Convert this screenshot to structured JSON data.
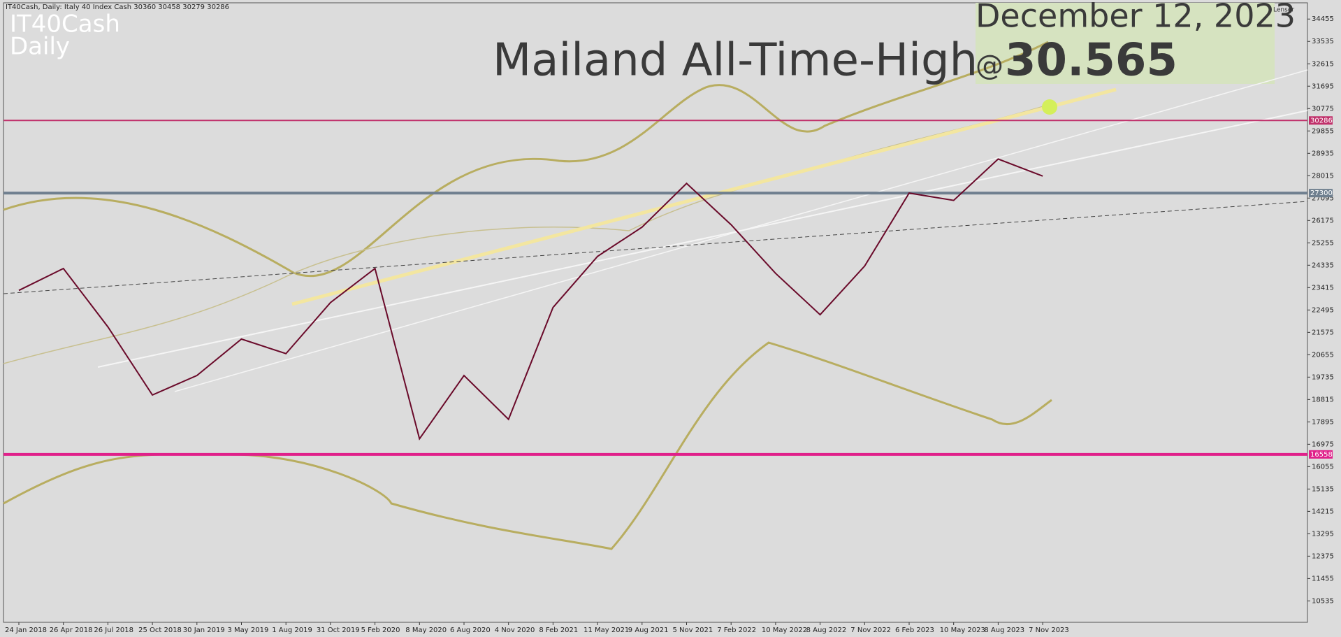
{
  "chart_data": {
    "type": "line",
    "header": "IT40Cash, Daily:  Italy 40 Index Cash  30360 30458 30279 30286",
    "symbol": "IT40Cash",
    "timeframe": "Daily",
    "date": "December 12, 2023",
    "title": "Mailand All-Time-High",
    "at": "@",
    "price_label": "30.565",
    "brand": "Lenser",
    "categories": [
      "24 Jan 2018",
      "26 Apr 2018",
      "26 Jul 2018",
      "25 Oct 2018",
      "30 Jan 2019",
      "3 May 2019",
      "1 Aug 2019",
      "31 Oct 2019",
      "5 Feb 2020",
      "8 May 2020",
      "6 Aug 2020",
      "4 Nov 2020",
      "8 Feb 2021",
      "11 May 2021",
      "9 Aug 2021",
      "5 Nov 2021",
      "7 Feb 2022",
      "10 May 2022",
      "8 Aug 2022",
      "7 Nov 2022",
      "6 Feb 2023",
      "10 May 2023",
      "8 Aug 2023",
      "7 Nov 2023"
    ],
    "series": [
      {
        "color": "#6a0a2a",
        "values": [
          23300,
          24200,
          21800,
          19000,
          19800,
          21300,
          20700,
          22800,
          24200,
          17200,
          19800,
          18000,
          22600,
          24700,
          25900,
          27700,
          26000,
          24000,
          22300,
          24300,
          27300,
          27000,
          28700,
          28000
        ]
      }
    ],
    "ylim": [
      9655,
      35123
    ],
    "yticks": [
      10535,
      11455,
      12375,
      13295,
      14215,
      15135,
      16055,
      16975,
      17895,
      18815,
      19735,
      20655,
      21575,
      22495,
      23415,
      24335,
      25255,
      26175,
      27095,
      28015,
      28935,
      29855,
      30775,
      31695,
      32615,
      33535,
      34455
    ],
    "hlines": [
      {
        "value": 30286,
        "color": "#c0306a"
      },
      {
        "value": 27300,
        "color": "#6f7f8f"
      },
      {
        "value": 16558,
        "color": "#e0208a"
      }
    ]
  }
}
